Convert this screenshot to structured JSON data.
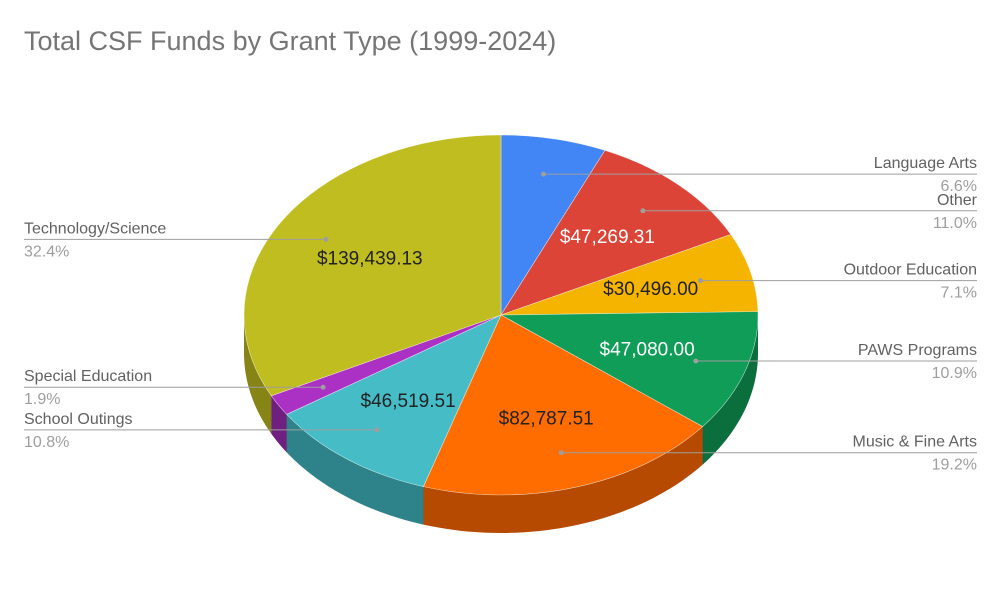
{
  "chart_data": {
    "type": "pie",
    "title": "Total CSF Funds by Grant Type (1999-2024)",
    "style": "3d-pie",
    "legend": "outside-leader-lines",
    "slices": [
      {
        "label": "Language Arts",
        "percent_label": "6.6%",
        "value": 28517,
        "value_label": "",
        "color": "#4285F4",
        "side_color": "#2a5db0",
        "label_color": "#ffffff",
        "side": "right"
      },
      {
        "label": "Other",
        "percent_label": "11.0%",
        "value": 47269.31,
        "value_label": "$47,269.31",
        "color": "#DB4437",
        "side_color": "#9c2e24",
        "label_color": "#ffffff",
        "side": "right"
      },
      {
        "label": "Outdoor Education",
        "percent_label": "7.1%",
        "value": 30496.0,
        "value_label": "$30,496.00",
        "color": "#F4B400",
        "side_color": "#b38300",
        "label_color": "#222222",
        "side": "right"
      },
      {
        "label": "PAWS Programs",
        "percent_label": "10.9%",
        "value": 47080.0,
        "value_label": "$47,080.00",
        "color": "#0F9D58",
        "side_color": "#0b6e3d",
        "label_color": "#ffffff",
        "side": "right"
      },
      {
        "label": "Music & Fine Arts",
        "percent_label": "19.2%",
        "value": 82787.51,
        "value_label": "$82,787.51",
        "color": "#FF6D00",
        "side_color": "#b54a00",
        "label_color": "#222222",
        "side": "right"
      },
      {
        "label": "School Outings",
        "percent_label": "10.8%",
        "value": 46519.51,
        "value_label": "$46,519.51",
        "color": "#46BDC6",
        "side_color": "#2e838a",
        "label_color": "#222222",
        "side": "left"
      },
      {
        "label": "Special Education",
        "percent_label": "1.9%",
        "value": 8159,
        "value_label": "",
        "color": "#AB30C4",
        "side_color": "#6e1f80",
        "label_color": "#ffffff",
        "side": "left"
      },
      {
        "label": "Technology/Science",
        "percent_label": "32.4%",
        "value": 139439.13,
        "value_label": "$139,439.13",
        "color": "#C0BD20",
        "side_color": "#878416",
        "label_color": "#222222",
        "side": "left"
      }
    ]
  }
}
